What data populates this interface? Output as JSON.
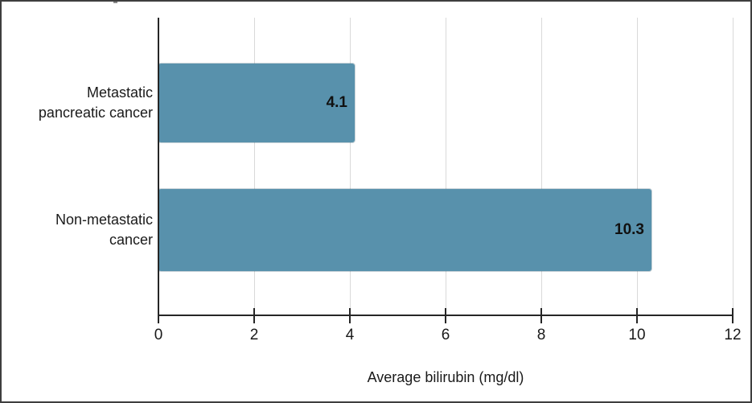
{
  "figure": {
    "background": "#ffffff",
    "border_color": "#3f3f3f"
  },
  "chart_data": {
    "type": "bar",
    "orientation": "horizontal",
    "title": "",
    "xlabel": "Average bilirubin (mg/dl)",
    "ylabel": "",
    "categories": [
      "Metastatic pancreatic cancer",
      "Non-metastatic cancer"
    ],
    "category_lines": [
      [
        "Metastatic",
        "pancreatic cancer"
      ],
      [
        "Non-metastatic",
        "cancer"
      ]
    ],
    "values": [
      4.1,
      10.3
    ],
    "value_labels": [
      "4.1",
      "10.3"
    ],
    "xlim": [
      0,
      12
    ],
    "xticks": [
      0,
      2,
      4,
      6,
      8,
      10,
      12
    ],
    "grid": true,
    "legend": "none",
    "bar_color": "#5891ac",
    "gridline_color": "#d9d9d9",
    "axis_color": "#262626",
    "text_color": "#1a1a1a"
  }
}
